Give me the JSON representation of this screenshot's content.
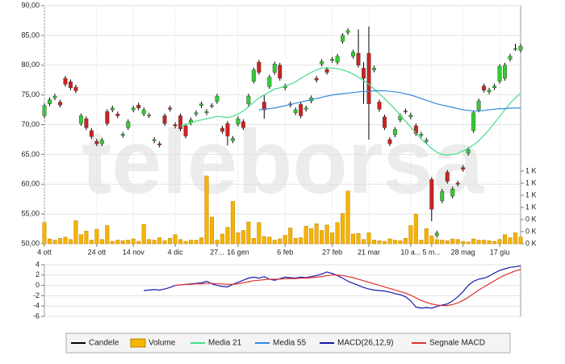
{
  "chart_data": [
    {
      "type": "candlestick",
      "watermark": "teleborsa",
      "grid": true,
      "xlim": [
        0,
        91
      ],
      "xticks": [
        {
          "value": 0,
          "label": "4 ott"
        },
        {
          "value": 10,
          "label": "24 ott"
        },
        {
          "value": 17,
          "label": "14 nov"
        },
        {
          "value": 25,
          "label": "4 dic"
        },
        {
          "value": 33,
          "label": "27..."
        },
        {
          "value": 37,
          "label": "16 gen"
        },
        {
          "value": 46,
          "label": "6 feb"
        },
        {
          "value": 55,
          "label": "27 feb"
        },
        {
          "value": 62,
          "label": "21 mar"
        },
        {
          "value": 70,
          "label": "10 a..."
        },
        {
          "value": 74,
          "label": "5 m..."
        },
        {
          "value": 80,
          "label": "28 mag"
        },
        {
          "value": 87,
          "label": "17 giu"
        }
      ],
      "ylim": [
        50,
        90
      ],
      "yticks": [
        {
          "value": 50,
          "label": "50,00"
        },
        {
          "value": 55,
          "label": "55,00"
        },
        {
          "value": 60,
          "label": "60,00"
        },
        {
          "value": 65,
          "label": "65,00"
        },
        {
          "value": 70,
          "label": "70,00"
        },
        {
          "value": 75,
          "label": "75,00"
        },
        {
          "value": 80,
          "label": "80,00"
        },
        {
          "value": 85,
          "label": "85,00"
        },
        {
          "value": 90,
          "label": "90,00"
        }
      ],
      "y2lim": [
        0,
        3930
      ],
      "y2ticks": [
        {
          "value": 0,
          "label": "0 K"
        },
        {
          "value": 200,
          "label": "0 K"
        },
        {
          "value": 400,
          "label": "0 K"
        },
        {
          "value": 600,
          "label": "1 K"
        },
        {
          "value": 800,
          "label": "1 K"
        },
        {
          "value": 1000,
          "label": "1 K"
        },
        {
          "value": 1200,
          "label": "1 K"
        }
      ],
      "series": [
        {
          "name": "Candele",
          "color": "#000000",
          "up_color": "#33cc33",
          "down_color": "#cc2222",
          "open": [
            71.5,
            73.5,
            74.5,
            73.8,
            77.8,
            77.2,
            76.3,
            70.2,
            71.0,
            69.0,
            67.2,
            66.8,
            72.2,
            72.5,
            71.8,
            68.2,
            69.5,
            72.5,
            73.3,
            71.8,
            71.5,
            67.3,
            66.8,
            71.5,
            72.8,
            70.0,
            71.5,
            69.8,
            70.3,
            71.8,
            73.2,
            72.0,
            73.2,
            73.9,
            69.4,
            70.2,
            67.3,
            70.1,
            70.5,
            73.5,
            77.3,
            80.5,
            73.8,
            76.4,
            78.8,
            80.0,
            76.2,
            73.3,
            72.0,
            73.4,
            72.6,
            74.0,
            77.8,
            80.2,
            79.3,
            80.8,
            80.5,
            84.0,
            85.5,
            81.5,
            82.0,
            79.5,
            82.0,
            79.2,
            73.8,
            71.3,
            67.5,
            68.3,
            70.8,
            72.3,
            71.3,
            69.8,
            68.2,
            67.2,
            60.8,
            51.4,
            57.2,
            62.0,
            58.0,
            60.2,
            62.8,
            65.2,
            69.0,
            72.5,
            76.5,
            75.5,
            76.2,
            77.3,
            77.8,
            81.0,
            82.8,
            82.5
          ],
          "high": [
            73.6,
            74.6,
            75.2,
            74.2,
            78.2,
            77.6,
            76.7,
            71.9,
            71.4,
            69.4,
            67.6,
            67.8,
            72.6,
            73.2,
            72.2,
            68.8,
            70.9,
            73.2,
            73.7,
            72.9,
            72.0,
            67.9,
            67.2,
            71.9,
            73.2,
            70.4,
            71.9,
            70.2,
            71.2,
            72.4,
            73.9,
            72.6,
            73.6,
            75.2,
            69.8,
            70.6,
            68.1,
            71.4,
            70.9,
            75.2,
            79.6,
            80.9,
            75.0,
            78.4,
            80.6,
            80.4,
            76.9,
            73.9,
            72.9,
            73.8,
            73.2,
            74.9,
            78.2,
            81.0,
            79.7,
            81.4,
            81.9,
            85.4,
            86.2,
            82.6,
            86.0,
            80.5,
            86.5,
            79.9,
            74.2,
            71.7,
            67.9,
            69.6,
            71.9,
            72.7,
            72.0,
            70.2,
            68.8,
            67.8,
            61.2,
            52.2,
            59.2,
            62.4,
            59.6,
            60.6,
            63.2,
            66.2,
            72.4,
            74.4,
            76.9,
            76.2,
            76.9,
            80.2,
            80.4,
            81.9,
            83.6,
            83.6
          ],
          "low": [
            71.1,
            73.1,
            74.1,
            72.9,
            76.4,
            75.8,
            75.3,
            69.8,
            69.1,
            67.6,
            66.4,
            66.4,
            69.8,
            72.1,
            71.1,
            67.8,
            69.1,
            72.1,
            72.4,
            71.4,
            71.1,
            66.9,
            66.2,
            69.8,
            72.2,
            69.4,
            68.9,
            67.7,
            69.9,
            71.4,
            72.8,
            71.6,
            72.8,
            73.5,
            68.5,
            66.5,
            66.9,
            69.7,
            69.1,
            73.1,
            76.9,
            78.4,
            71.0,
            76.0,
            78.4,
            77.4,
            75.8,
            72.9,
            71.6,
            71.1,
            72.2,
            73.6,
            77.1,
            79.8,
            78.4,
            80.4,
            80.1,
            83.6,
            85.1,
            81.1,
            79.6,
            73.5,
            67.5,
            78.8,
            72.2,
            69.1,
            66.4,
            67.9,
            70.4,
            71.8,
            70.9,
            68.1,
            67.8,
            66.8,
            53.8,
            51.0,
            56.8,
            60.1,
            57.6,
            59.6,
            62.1,
            64.8,
            68.6,
            72.1,
            75.4,
            75.1,
            75.8,
            76.9,
            77.4,
            80.6,
            82.4,
            82.1
          ],
          "close": [
            73.2,
            74.2,
            74.8,
            73.3,
            76.8,
            76.2,
            75.7,
            71.5,
            69.5,
            68.0,
            66.8,
            67.4,
            70.2,
            72.8,
            71.5,
            68.4,
            70.5,
            72.8,
            72.8,
            72.5,
            71.6,
            67.5,
            66.6,
            70.2,
            72.6,
            69.8,
            69.3,
            68.1,
            70.8,
            72.0,
            73.5,
            72.2,
            73.2,
            74.8,
            68.9,
            68.1,
            67.7,
            71.0,
            69.5,
            74.8,
            79.2,
            78.8,
            72.5,
            78.0,
            80.2,
            77.8,
            76.5,
            73.5,
            72.5,
            71.5,
            72.8,
            74.5,
            77.5,
            80.6,
            78.8,
            81.0,
            81.5,
            85.0,
            85.8,
            82.2,
            80.0,
            77.8,
            73.5,
            79.5,
            72.6,
            69.5,
            66.8,
            69.2,
            71.5,
            72.2,
            71.6,
            68.5,
            68.4,
            67.4,
            55.8,
            51.8,
            58.8,
            60.5,
            59.2,
            60.0,
            62.5,
            65.8,
            72.0,
            74.0,
            75.8,
            75.8,
            76.5,
            79.8,
            80.0,
            81.5,
            82.8,
            83.2
          ]
        },
        {
          "name": "Volume",
          "color": "#f5b400",
          "axis": "y2",
          "values": [
            350,
            80,
            60,
            90,
            110,
            70,
            380,
            150,
            210,
            60,
            240,
            70,
            300,
            40,
            60,
            50,
            60,
            80,
            40,
            320,
            70,
            60,
            100,
            50,
            90,
            150,
            70,
            40,
            60,
            60,
            100,
            1120,
            440,
            60,
            160,
            270,
            700,
            180,
            220,
            360,
            90,
            350,
            120,
            110,
            60,
            80,
            140,
            260,
            90,
            100,
            290,
            250,
            330,
            220,
            310,
            180,
            350,
            500,
            870,
            160,
            170,
            70,
            180,
            60,
            50,
            40,
            80,
            60,
            50,
            90,
            300,
            490,
            60,
            250,
            130,
            70,
            60,
            50,
            80,
            70,
            40,
            30,
            80,
            60,
            60,
            50,
            40,
            70,
            150,
            100,
            180,
            110
          ]
        },
        {
          "name": "Media 21",
          "color": "#44dd88",
          "values": [
            null,
            null,
            null,
            null,
            null,
            null,
            null,
            null,
            null,
            null,
            null,
            null,
            null,
            null,
            null,
            null,
            null,
            null,
            null,
            null,
            null,
            null,
            null,
            null,
            null,
            null,
            69.8,
            70.0,
            70.3,
            70.6,
            70.8,
            71.0,
            71.2,
            71.4,
            71.3,
            71.2,
            71.4,
            71.8,
            72.3,
            73.0,
            73.8,
            74.5,
            75.0,
            75.5,
            76.0,
            76.2,
            76.5,
            76.8,
            77.2,
            77.8,
            78.3,
            78.8,
            79.2,
            79.5,
            79.6,
            79.5,
            79.4,
            79.2,
            78.9,
            78.5,
            78.0,
            77.4,
            76.8,
            76.0,
            75.2,
            74.4,
            73.5,
            72.6,
            71.6,
            70.6,
            69.6,
            68.6,
            67.6,
            66.8,
            66.0,
            65.4,
            65.0,
            64.9,
            65.0,
            65.2,
            65.6,
            66.0,
            66.6,
            67.3,
            68.2,
            69.2,
            70.3,
            71.4,
            72.5,
            73.6,
            74.5,
            75.3
          ]
        },
        {
          "name": "Media 55",
          "color": "#3388dd",
          "values": [
            null,
            null,
            null,
            null,
            null,
            null,
            null,
            null,
            null,
            null,
            null,
            null,
            null,
            null,
            null,
            null,
            null,
            null,
            null,
            null,
            null,
            null,
            null,
            null,
            null,
            null,
            null,
            null,
            null,
            null,
            null,
            null,
            null,
            null,
            null,
            null,
            null,
            null,
            null,
            null,
            null,
            72.5,
            72.6,
            72.7,
            72.8,
            73.0,
            73.2,
            73.4,
            73.6,
            73.8,
            74.0,
            74.2,
            74.4,
            74.6,
            74.8,
            75.0,
            75.1,
            75.2,
            75.3,
            75.4,
            75.5,
            75.6,
            75.6,
            75.7,
            75.7,
            75.7,
            75.6,
            75.5,
            75.4,
            75.2,
            75.0,
            74.7,
            74.4,
            74.1,
            73.8,
            73.5,
            73.3,
            73.1,
            72.9,
            72.7,
            72.5,
            72.4,
            72.3,
            72.3,
            72.4,
            72.5,
            72.6,
            72.7,
            72.7,
            72.8,
            72.8,
            72.8
          ]
        }
      ]
    },
    {
      "type": "line",
      "grid": true,
      "xlim": [
        0,
        91
      ],
      "ylim": [
        -6,
        4
      ],
      "yticks": [
        4,
        2,
        0,
        -2,
        -4,
        -6
      ],
      "series": [
        {
          "name": "MACD(26,12,9)",
          "color": "#1a1aaa",
          "values": [
            null,
            null,
            null,
            null,
            null,
            null,
            null,
            null,
            null,
            null,
            null,
            null,
            null,
            null,
            null,
            null,
            null,
            null,
            null,
            -1.0,
            -0.9,
            -0.8,
            -0.9,
            -0.7,
            -0.4,
            0.0,
            0.1,
            0.2,
            0.3,
            0.4,
            0.5,
            0.8,
            0.3,
            0.0,
            -0.2,
            -0.3,
            0.2,
            0.6,
            1.0,
            1.4,
            1.6,
            1.4,
            1.7,
            1.2,
            1.0,
            1.3,
            1.6,
            1.5,
            1.4,
            1.6,
            1.5,
            1.7,
            1.9,
            2.2,
            2.6,
            2.3,
            1.9,
            1.4,
            0.8,
            0.4,
            0.0,
            -0.4,
            -0.7,
            -0.9,
            -1.0,
            -1.1,
            -1.3,
            -1.6,
            -1.8,
            -2.2,
            -3.0,
            -4.2,
            -4.4,
            -4.3,
            -4.4,
            -4.1,
            -3.8,
            -3.6,
            -3.0,
            -2.2,
            -1.2,
            0.0,
            0.8,
            1.2,
            1.4,
            1.8,
            2.4,
            2.9,
            3.2,
            3.5,
            3.6,
            3.8
          ]
        },
        {
          "name": "Segnale MACD",
          "color": "#e03030",
          "values": [
            null,
            null,
            null,
            null,
            null,
            null,
            null,
            null,
            null,
            null,
            null,
            null,
            null,
            null,
            null,
            null,
            null,
            null,
            null,
            null,
            null,
            null,
            null,
            null,
            null,
            0.0,
            0.1,
            0.2,
            0.2,
            0.3,
            0.3,
            0.4,
            0.4,
            0.3,
            0.3,
            0.2,
            0.2,
            0.3,
            0.5,
            0.7,
            0.9,
            1.0,
            1.1,
            1.2,
            1.2,
            1.2,
            1.3,
            1.3,
            1.3,
            1.4,
            1.4,
            1.5,
            1.6,
            1.7,
            1.9,
            2.0,
            2.0,
            1.9,
            1.7,
            1.5,
            1.2,
            0.9,
            0.6,
            0.3,
            0.0,
            -0.3,
            -0.6,
            -0.9,
            -1.2,
            -1.5,
            -1.9,
            -2.4,
            -2.9,
            -3.3,
            -3.6,
            -3.8,
            -3.9,
            -3.9,
            -3.7,
            -3.4,
            -2.9,
            -2.3,
            -1.6,
            -0.9,
            -0.3,
            0.3,
            0.9,
            1.5,
            2.0,
            2.4,
            2.8,
            3.1
          ]
        }
      ]
    }
  ]
}
